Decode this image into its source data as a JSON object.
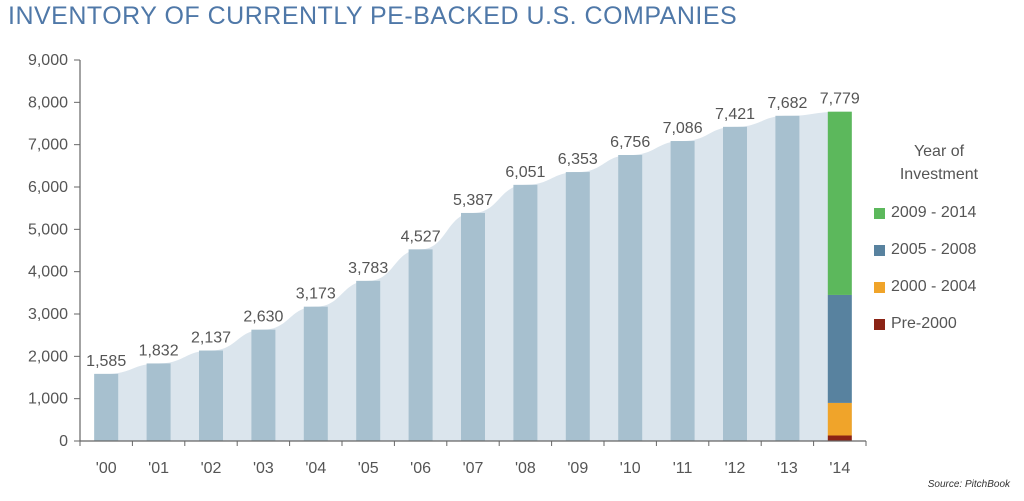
{
  "title": "INVENTORY OF CURRENTLY PE-BACKED U.S. COMPANIES",
  "source": "Source: PitchBook",
  "legend": {
    "title_line1": "Year of",
    "title_line2": "Investment",
    "items": [
      {
        "label": "2009 - 2014",
        "color": "#5cb85c"
      },
      {
        "label": "2005 - 2008",
        "color": "#58829f"
      },
      {
        "label": "2000 - 2004",
        "color": "#f0a42a"
      },
      {
        "label": "Pre-2000",
        "color": "#8b2315"
      }
    ]
  },
  "colors": {
    "bar": "#a7c0cf",
    "area": "#dbe5ed",
    "axis": "#666666",
    "labels": "#555555"
  },
  "chart_data": {
    "type": "bar",
    "title": "INVENTORY OF CURRENTLY PE-BACKED U.S. COMPANIES",
    "categories": [
      "'00",
      "'01",
      "'02",
      "'03",
      "'04",
      "'05",
      "'06",
      "'07",
      "'08",
      "'09",
      "'10",
      "'11",
      "'12",
      "'13",
      "'14"
    ],
    "values": [
      1585,
      1832,
      2137,
      2630,
      3173,
      3783,
      4527,
      5387,
      6051,
      6353,
      6756,
      7086,
      7421,
      7682,
      7779
    ],
    "data_labels": [
      "1,585",
      "1,832",
      "2,137",
      "2,630",
      "3,173",
      "3,783",
      "4,527",
      "5,387",
      "6,051",
      "6,353",
      "6,756",
      "7,086",
      "7,421",
      "7,682",
      "7,779"
    ],
    "ylim": [
      0,
      9000
    ],
    "yticks": [
      0,
      1000,
      2000,
      3000,
      4000,
      5000,
      6000,
      7000,
      8000,
      9000
    ],
    "ytick_labels": [
      "0",
      "1,000",
      "2,000",
      "3,000",
      "4,000",
      "5,000",
      "6,000",
      "7,000",
      "8,000",
      "9,000"
    ],
    "last_bar_breakdown": [
      {
        "name": "Pre-2000",
        "value": 130,
        "color": "#8b2315"
      },
      {
        "name": "2000 - 2004",
        "value": 770,
        "color": "#f0a42a"
      },
      {
        "name": "2005 - 2008",
        "value": 2550,
        "color": "#58829f"
      },
      {
        "name": "2009 - 2014",
        "value": 4329,
        "color": "#5cb85c"
      }
    ],
    "xlabel": "",
    "ylabel": "",
    "grid": false,
    "legend_position": "right"
  }
}
